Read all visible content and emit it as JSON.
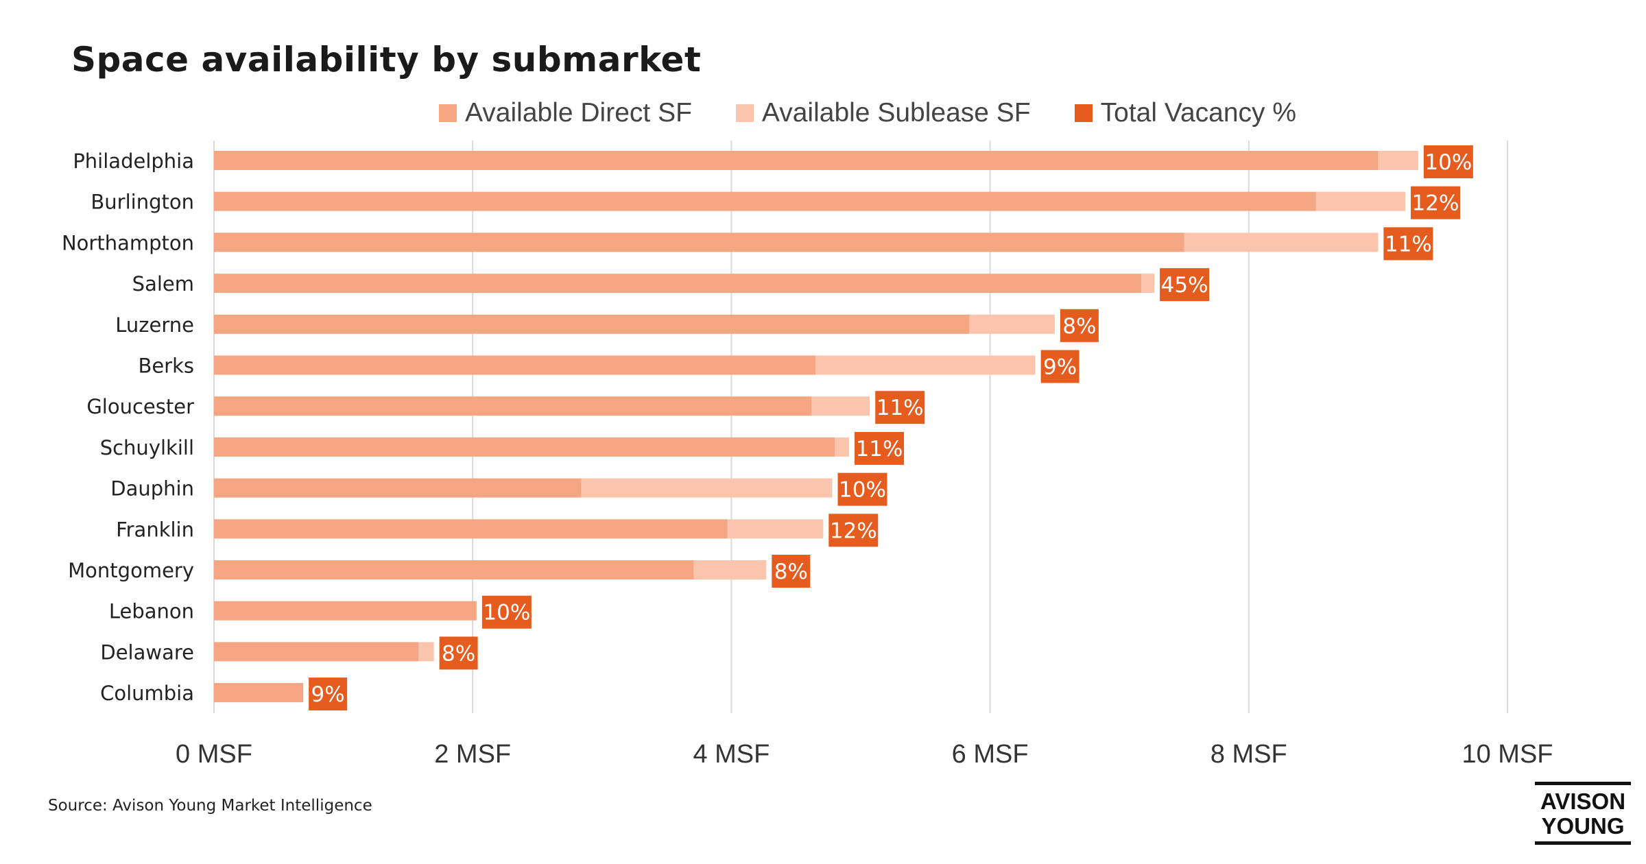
{
  "chart_data": {
    "type": "bar",
    "orientation": "horizontal",
    "stacked": true,
    "title": "Space availability by submarket",
    "categories": [
      "Philadelphia",
      "Burlington",
      "Northampton",
      "Salem",
      "Luzerne",
      "Berks",
      "Gloucester",
      "Schuylkill",
      "Dauphin",
      "Franklin",
      "Montgomery",
      "Lebanon",
      "Delaware",
      "Columbia"
    ],
    "series": [
      {
        "name": "Available Direct SF",
        "color": "#f4a582",
        "values": [
          9.0,
          8.52,
          7.5,
          7.17,
          5.84,
          4.65,
          4.62,
          4.8,
          2.84,
          3.97,
          3.71,
          2.03,
          1.58,
          0.69
        ]
      },
      {
        "name": "Available Sublease SF",
        "color": "#fbc5ad",
        "values": [
          0.31,
          0.69,
          1.5,
          0.1,
          0.66,
          1.7,
          0.45,
          0.11,
          1.94,
          0.74,
          0.56,
          0.0,
          0.12,
          0.0
        ]
      },
      {
        "name": "Total Vacancy %",
        "color": "#e65c1f",
        "labels": [
          "10%",
          "12%",
          "11%",
          "45%",
          "8%",
          "9%",
          "11%",
          "11%",
          "10%",
          "12%",
          "8%",
          "10%",
          "8%",
          "9%"
        ]
      }
    ],
    "xlim": [
      0,
      10
    ],
    "x_ticks": [
      0,
      2,
      4,
      6,
      8,
      10
    ],
    "x_tick_labels": [
      "0 MSF",
      "2 MSF",
      "4 MSF",
      "6 MSF",
      "8 MSF",
      "10 MSF"
    ],
    "legend_position": "top",
    "grid": true
  },
  "source": "Source: Avison Young Market Intelligence",
  "logo": {
    "line1": "AVISON",
    "line2": "YOUNG"
  }
}
